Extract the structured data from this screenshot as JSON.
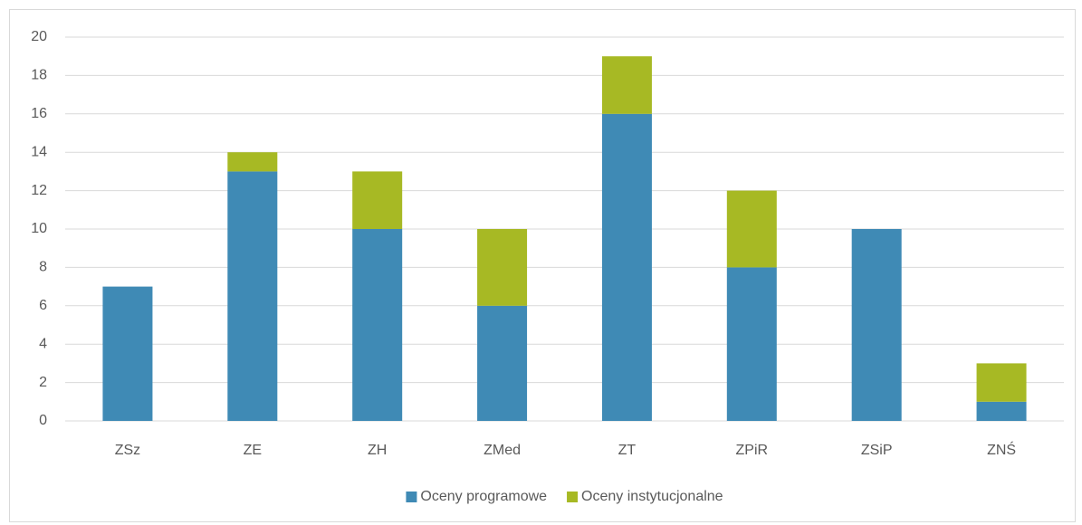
{
  "chart_data": {
    "type": "bar",
    "stacked": true,
    "categories": [
      "ZSz",
      "ZE",
      "ZH",
      "ZMed",
      "ZT",
      "ZPiR",
      "ZSiP",
      "ZNŚ"
    ],
    "series": [
      {
        "name": "Oceny programowe",
        "color": "#3f8ab5",
        "values": [
          7,
          13,
          10,
          6,
          16,
          8,
          10,
          1
        ]
      },
      {
        "name": "Oceny instytucjonalne",
        "color": "#a7b924",
        "values": [
          0,
          1,
          3,
          4,
          3,
          4,
          0,
          2
        ]
      }
    ],
    "ylim": [
      0,
      20
    ],
    "yticks": [
      0,
      2,
      4,
      6,
      8,
      10,
      12,
      14,
      16,
      18,
      20
    ],
    "grid": true,
    "legend": "bottom"
  }
}
